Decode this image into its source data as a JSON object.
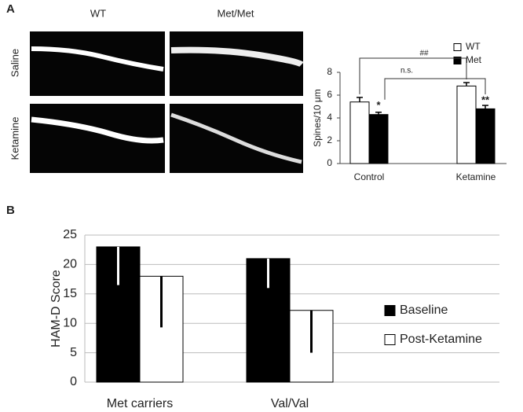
{
  "panel_a": {
    "label": "A",
    "columns": [
      "WT",
      "Met/Met"
    ],
    "rows": [
      "Saline",
      "Ketamine"
    ]
  },
  "panel_b": {
    "label": "B"
  },
  "chart_data": [
    {
      "type": "bar",
      "ylabel": "Spines/10 μm",
      "categories": [
        "Control",
        "Ketamine"
      ],
      "series": [
        {
          "name": "WT",
          "color": "#ffffff",
          "values": [
            5.4,
            6.8
          ],
          "errors": [
            0.4,
            0.3
          ]
        },
        {
          "name": "Met",
          "color": "#000000",
          "values": [
            4.3,
            4.8
          ],
          "errors": [
            0.2,
            0.3
          ]
        }
      ],
      "ylim": [
        0,
        8
      ],
      "yticks": [
        0,
        2,
        4,
        6,
        8
      ],
      "grid": false,
      "legend": "top-right",
      "annotations": [
        "##",
        "n.s.",
        "*",
        "**"
      ]
    },
    {
      "type": "bar",
      "ylabel": "HAM-D Score",
      "categories": [
        "Met carriers",
        "Val/Val"
      ],
      "series": [
        {
          "name": "Baseline",
          "color": "#000000",
          "values": [
            23,
            21
          ],
          "errors": [
            6.5,
            5
          ]
        },
        {
          "name": "Post-Ketamine",
          "color": "#ffffff",
          "values": [
            18,
            12.2
          ],
          "errors": [
            8.7,
            7.2
          ]
        }
      ],
      "ylim": [
        0,
        25
      ],
      "yticks": [
        0,
        5,
        10,
        15,
        20,
        25
      ],
      "grid": true,
      "legend": "right"
    }
  ]
}
